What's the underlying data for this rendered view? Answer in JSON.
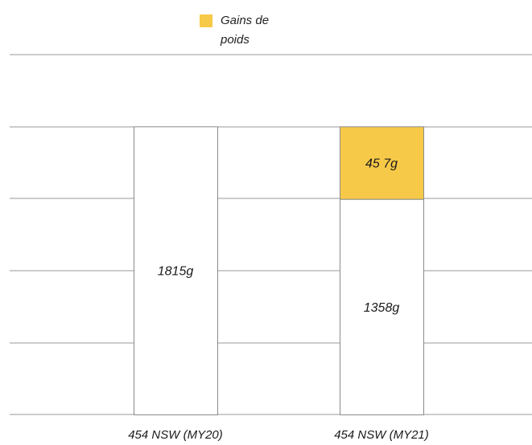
{
  "chart_data": {
    "type": "bar",
    "stacked": true,
    "categories": [
      "454 NSW (MY20)",
      "454 NSW (MY21)"
    ],
    "series": [
      {
        "name": "",
        "values": [
          1815,
          1358
        ],
        "labels": [
          "1815g",
          "1358g"
        ],
        "color": "#ffffff"
      },
      {
        "name": "Gains de poids",
        "values": [
          0,
          457
        ],
        "labels": [
          "",
          "45 7g"
        ],
        "color": "#f7c948"
      }
    ],
    "ylim": [
      0,
      2267
    ],
    "grid": true,
    "legend_position": "top-center",
    "xlabel": "",
    "ylabel": "",
    "title": ""
  }
}
